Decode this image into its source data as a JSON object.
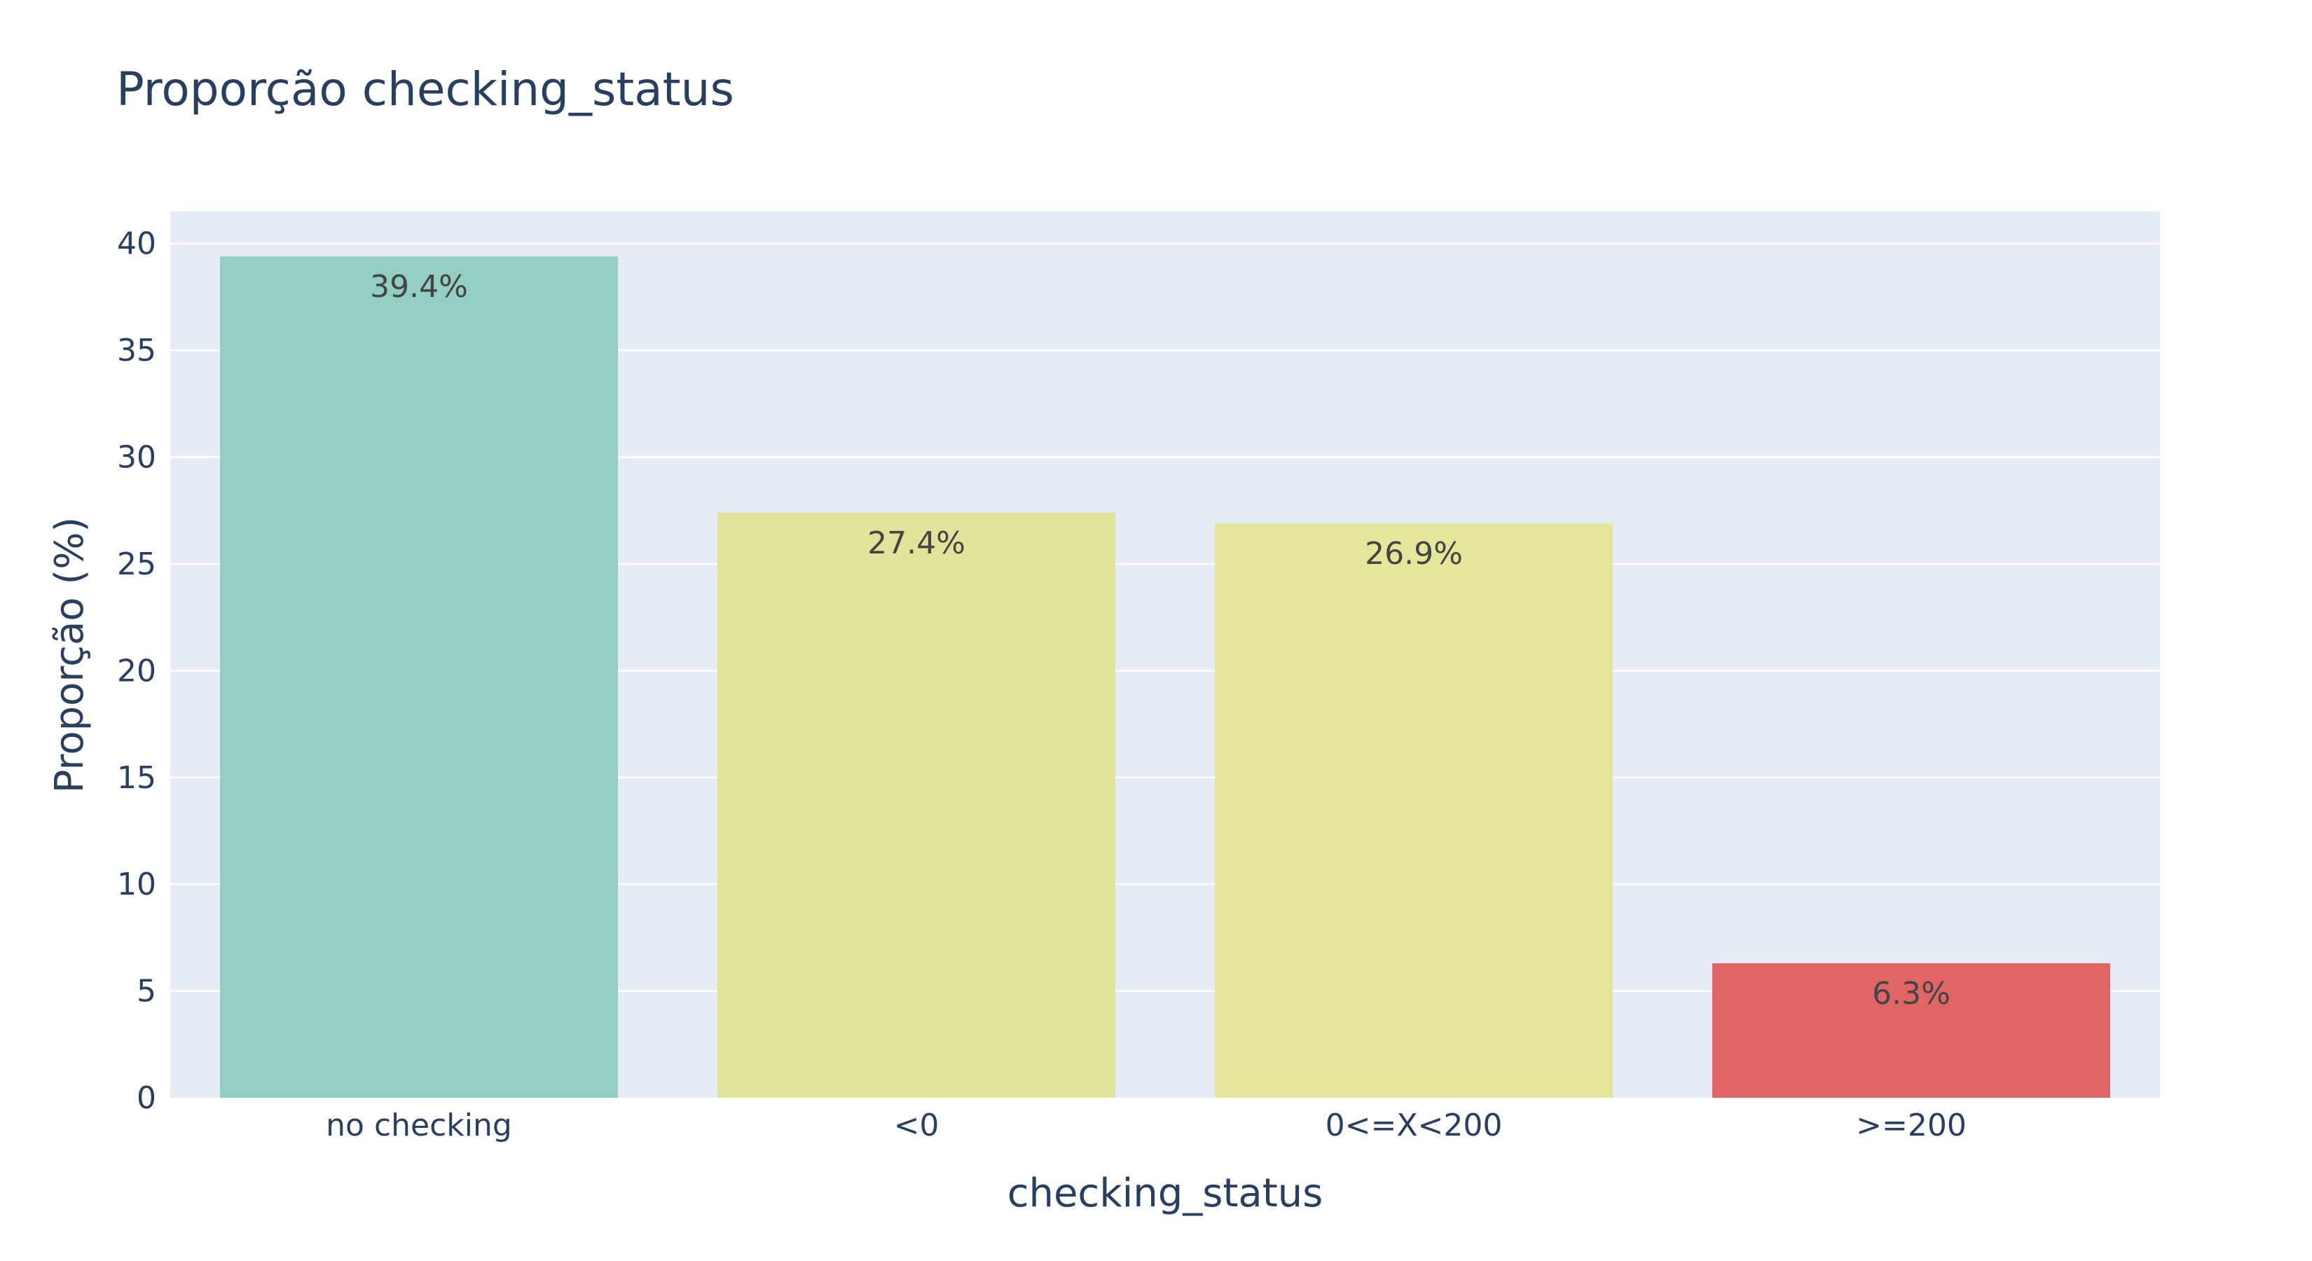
{
  "chart_data": {
    "type": "bar",
    "title": "Proporção checking_status",
    "xlabel": "checking_status",
    "ylabel": "Proporção (%)",
    "categories": [
      "no checking",
      "<0",
      "0<=X<200",
      ">=200"
    ],
    "values": [
      39.4,
      27.4,
      26.9,
      6.3
    ],
    "data_labels": [
      "39.4%",
      "27.4%",
      "26.9%",
      "6.3%"
    ],
    "bar_colors": [
      "#93cec2",
      "#e0e49a",
      "#e4e79b",
      "#e06666"
    ],
    "ylim": [
      0,
      41.5
    ],
    "yticks": [
      0,
      5,
      10,
      15,
      20,
      25,
      30,
      35,
      40
    ],
    "grid": true,
    "legend": false,
    "plot_background": "#e5ecf6",
    "text_color": "#2a3f5f"
  }
}
